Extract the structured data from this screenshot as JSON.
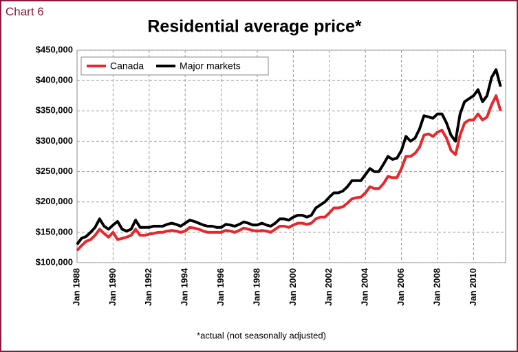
{
  "label": "Chart 6",
  "chart_data": {
    "type": "line",
    "title": "Residential average price*",
    "note": "*actual (not seasonally adjusted)",
    "categories": [
      "Jan 1988",
      null,
      null,
      null,
      null,
      null,
      null,
      null,
      "Jan 1990",
      null,
      null,
      null,
      null,
      null,
      null,
      null,
      "Jan 1992",
      null,
      null,
      null,
      null,
      null,
      null,
      null,
      "Jan 1994",
      null,
      null,
      null,
      null,
      null,
      null,
      null,
      "Jan 1996",
      null,
      null,
      null,
      null,
      null,
      null,
      null,
      "Jan 1998",
      null,
      null,
      null,
      null,
      null,
      null,
      null,
      "Jan 2000",
      null,
      null,
      null,
      null,
      null,
      null,
      null,
      "Jan 2002",
      null,
      null,
      null,
      null,
      null,
      null,
      null,
      "Jan 2004",
      null,
      null,
      null,
      null,
      null,
      null,
      null,
      "Jan 2006",
      null,
      null,
      null,
      null,
      null,
      null,
      null,
      "Jan 2008",
      null,
      null,
      null,
      null,
      null,
      null,
      null,
      "Jan 2010",
      null,
      null,
      null,
      null,
      null,
      null
    ],
    "series": [
      {
        "name": "Canada",
        "color": "#e8262b",
        "values": [
          120000,
          128000,
          135000,
          138000,
          145000,
          155000,
          148000,
          142000,
          150000,
          138000,
          140000,
          142000,
          145000,
          155000,
          145000,
          145000,
          147000,
          148000,
          150000,
          150000,
          152000,
          153000,
          152000,
          150000,
          152000,
          158000,
          157000,
          155000,
          152000,
          150000,
          150000,
          150000,
          150000,
          153000,
          152000,
          150000,
          153000,
          157000,
          155000,
          153000,
          152000,
          153000,
          152000,
          150000,
          155000,
          160000,
          160000,
          158000,
          162000,
          165000,
          165000,
          163000,
          165000,
          172000,
          175000,
          175000,
          182000,
          190000,
          190000,
          192000,
          198000,
          205000,
          207000,
          208000,
          215000,
          225000,
          222000,
          222000,
          230000,
          242000,
          240000,
          240000,
          255000,
          275000,
          275000,
          280000,
          290000,
          310000,
          312000,
          308000,
          315000,
          318000,
          305000,
          285000,
          278000,
          310000,
          330000,
          335000,
          335000,
          345000,
          335000,
          340000,
          360000,
          375000,
          350000
        ]
      },
      {
        "name": "Major markets",
        "color": "#000000",
        "values": [
          130000,
          140000,
          143000,
          150000,
          158000,
          172000,
          160000,
          155000,
          162000,
          168000,
          155000,
          152000,
          155000,
          170000,
          158000,
          158000,
          158000,
          160000,
          160000,
          160000,
          163000,
          165000,
          163000,
          160000,
          165000,
          170000,
          168000,
          165000,
          162000,
          160000,
          160000,
          158000,
          158000,
          163000,
          162000,
          160000,
          163000,
          167000,
          165000,
          162000,
          162000,
          165000,
          162000,
          160000,
          165000,
          172000,
          172000,
          170000,
          175000,
          178000,
          178000,
          175000,
          178000,
          190000,
          195000,
          200000,
          208000,
          215000,
          215000,
          218000,
          225000,
          235000,
          235000,
          235000,
          245000,
          255000,
          250000,
          250000,
          262000,
          275000,
          270000,
          272000,
          285000,
          308000,
          300000,
          305000,
          320000,
          342000,
          340000,
          338000,
          345000,
          345000,
          330000,
          310000,
          300000,
          345000,
          365000,
          370000,
          375000,
          385000,
          365000,
          375000,
          405000,
          418000,
          390000
        ]
      }
    ],
    "ylim": [
      100000,
      450000
    ],
    "yticks": [
      {
        "value": 100000,
        "label": "$100,000"
      },
      {
        "value": 150000,
        "label": "$150,000"
      },
      {
        "value": 200000,
        "label": "$200,000"
      },
      {
        "value": 250000,
        "label": "$250,000"
      },
      {
        "value": 300000,
        "label": "$300,000"
      },
      {
        "value": 350000,
        "label": "$350,000"
      },
      {
        "value": 400000,
        "label": "$400,000"
      },
      {
        "value": 450000,
        "label": "$450,000"
      }
    ],
    "grid": true,
    "legend": "top-left"
  }
}
